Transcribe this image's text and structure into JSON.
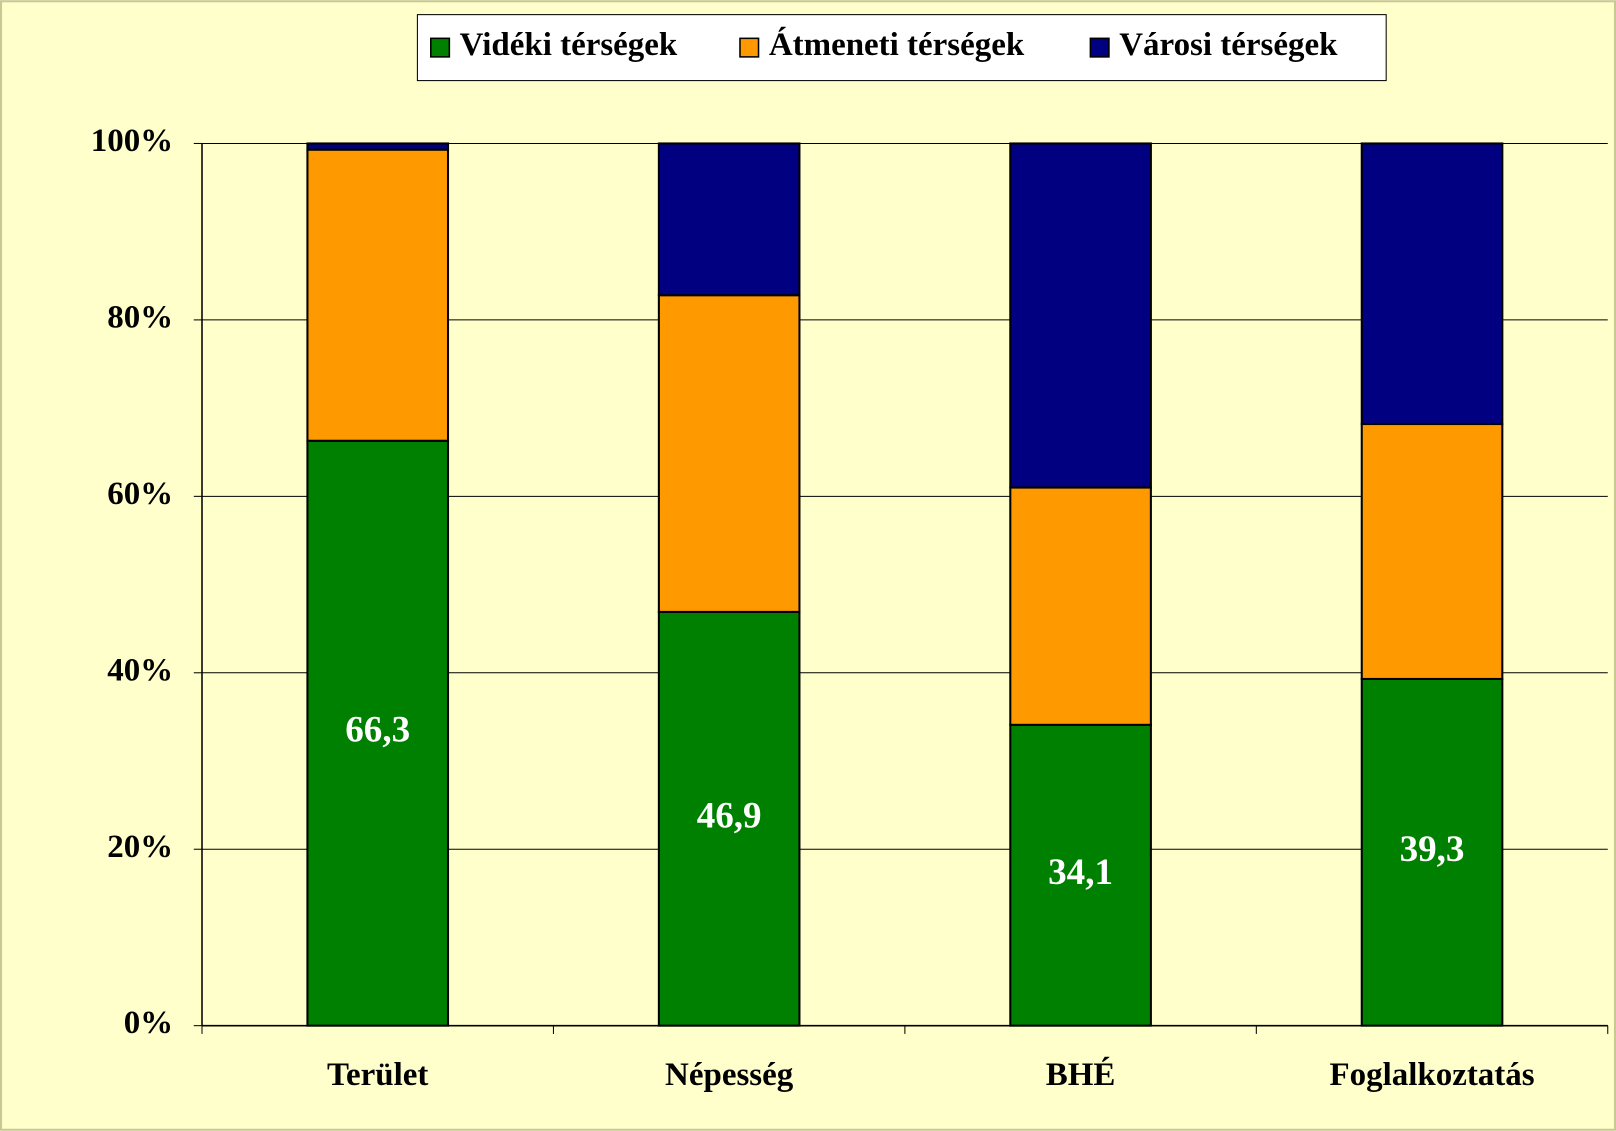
{
  "chart_data": {
    "type": "stacked_bar",
    "categories": [
      "Terület",
      "Népesség",
      "BHÉ",
      "Foglalkoztatás"
    ],
    "series": [
      {
        "name": "Vidéki térségek",
        "color": "#008000",
        "values": [
          66.3,
          46.9,
          34.1,
          39.3
        ],
        "value_labels": [
          "66,3",
          "46,9",
          "34,1",
          "39,3"
        ]
      },
      {
        "name": "Átmeneti térségek",
        "color": "#ff9900",
        "values": [
          33.0,
          35.9,
          26.9,
          28.9
        ]
      },
      {
        "name": "Városi térségek",
        "color": "#000080",
        "values": [
          0.7,
          17.2,
          39.0,
          31.8
        ]
      }
    ],
    "ylim": [
      0,
      100
    ],
    "yticks": [
      {
        "value": 0,
        "label": "0%"
      },
      {
        "value": 20,
        "label": "20%"
      },
      {
        "value": 40,
        "label": "40%"
      },
      {
        "value": 60,
        "label": "60%"
      },
      {
        "value": 80,
        "label": "80%"
      },
      {
        "value": 100,
        "label": "100%"
      }
    ],
    "grid": true,
    "legend": "top"
  }
}
